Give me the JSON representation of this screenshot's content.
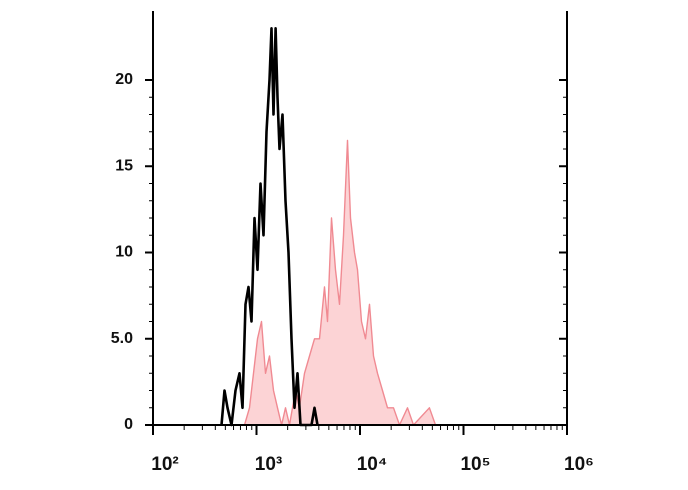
{
  "chart_data": {
    "type": "line",
    "xlog": true,
    "xlim": [
      100,
      1000000
    ],
    "xticks": [
      {
        "value": 100,
        "label": "10²"
      },
      {
        "value": 1000,
        "label": "10³"
      },
      {
        "value": 10000,
        "label": "10⁴"
      },
      {
        "value": 100000,
        "label": "10⁵"
      },
      {
        "value": 1000000,
        "label": "10⁶"
      }
    ],
    "ylim": [
      0,
      24
    ],
    "yticks": [
      0,
      {
        "value": 5,
        "label": "5.0"
      },
      10,
      15,
      20
    ],
    "series": [
      {
        "color": "#f08a92",
        "fill": "#fcd3d5",
        "x": [
          766,
          855,
          935,
          1023,
          1117,
          1222,
          1336,
          1459,
          1596,
          1746,
          1905,
          2084,
          2382,
          2600,
          2911,
          3251,
          3631,
          4064,
          4539,
          4853,
          5309,
          5794,
          6339,
          6934,
          7568,
          8091,
          8851,
          9462,
          10328,
          11298,
          12359,
          13490,
          14757,
          16482,
          18450,
          21086,
          24099,
          28774,
          32885,
          46881,
          53580
        ],
        "values": [
          0,
          1,
          3,
          5,
          6,
          3,
          4,
          2,
          1,
          0,
          1,
          0,
          2,
          1,
          3,
          4,
          5,
          5,
          8,
          6,
          12,
          9,
          7,
          11,
          16.5,
          12,
          10,
          9,
          6,
          5,
          7,
          4,
          3,
          2,
          1,
          1,
          0,
          1,
          0,
          1,
          0
        ]
      },
      {
        "color": "#000000",
        "x": [
          459,
          491,
          525,
          573,
          627,
          685,
          732,
          783,
          837,
          895,
          957,
          1023,
          1094,
          1169,
          1250,
          1336,
          1396,
          1459,
          1528,
          1596,
          1667,
          1782,
          1905,
          2037,
          2178,
          2328,
          2489,
          2661,
          3396,
          3631,
          3882
        ],
        "values": [
          0,
          2,
          1,
          0,
          2,
          3,
          1,
          7,
          8,
          6,
          12,
          9,
          14,
          11,
          17,
          20,
          23,
          18,
          23,
          19,
          16,
          18,
          13,
          10,
          5,
          1,
          3,
          0,
          0,
          1,
          0
        ]
      }
    ]
  }
}
